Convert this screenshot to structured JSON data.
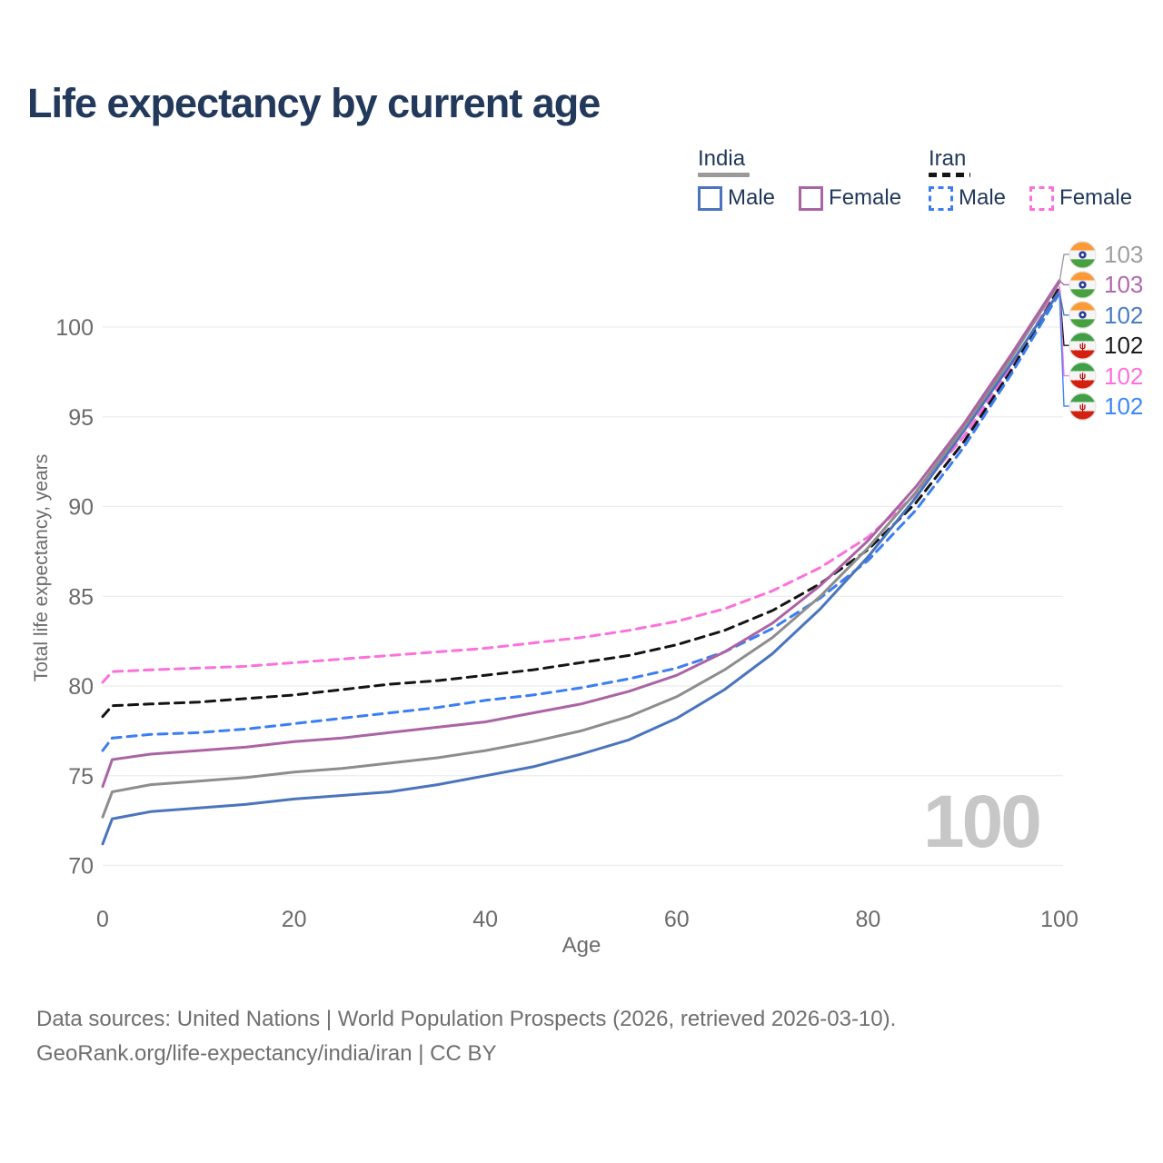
{
  "title": "Life expectancy by current age",
  "watermark": "100",
  "legend": {
    "groups": [
      {
        "label": "India",
        "line_color": "#9a9a9a",
        "line_style": "solid",
        "items": [
          {
            "label": "Male",
            "color": "#4a74bc",
            "dash": false
          },
          {
            "label": "Female",
            "color": "#ab64a3",
            "dash": false
          }
        ]
      },
      {
        "label": "Iran",
        "line_color": "#141414",
        "line_style": "dashed",
        "items": [
          {
            "label": "Male",
            "color": "#3b7ef2",
            "dash": true
          },
          {
            "label": "Female",
            "color": "#fb71dc",
            "dash": true
          }
        ]
      }
    ]
  },
  "axes": {
    "x": {
      "title": "Age",
      "ticks": [
        0,
        20,
        40,
        60,
        80,
        100
      ],
      "min": 0,
      "max": 100
    },
    "y": {
      "title": "Total life expectancy, years",
      "ticks": [
        70,
        75,
        80,
        85,
        90,
        95,
        100
      ],
      "min": 70,
      "max": 100
    }
  },
  "end_labels": [
    {
      "flag": "india",
      "value": "103",
      "color": "#9e9e9e",
      "series": 2
    },
    {
      "flag": "india",
      "value": "103",
      "color": "#b168ac",
      "series": 1
    },
    {
      "flag": "india",
      "value": "102",
      "color": "#4a7bc4",
      "series": 0
    },
    {
      "flag": "iran",
      "value": "102",
      "color": "#1c1c1c",
      "series": 5
    },
    {
      "flag": "iran",
      "value": "102",
      "color": "#ff70dd",
      "series": 4
    },
    {
      "flag": "iran",
      "value": "102",
      "color": "#3d87f7",
      "series": 3
    }
  ],
  "chart_data": {
    "type": "line",
    "title": "Life expectancy by current age",
    "xlabel": "Age",
    "ylabel": "Total life expectancy, years",
    "xlim": [
      0,
      100
    ],
    "ylim": [
      70,
      103
    ],
    "grid": "horizontal",
    "legend_position": "top-right",
    "x": [
      0,
      1,
      5,
      10,
      15,
      20,
      25,
      30,
      35,
      40,
      45,
      50,
      55,
      60,
      65,
      70,
      75,
      80,
      85,
      90,
      95,
      100
    ],
    "series": [
      {
        "country": "India",
        "group": "Male",
        "color": "#4a74bc",
        "dash": false,
        "end_label": 102,
        "values": [
          71.2,
          72.6,
          73.0,
          73.2,
          73.4,
          73.7,
          73.9,
          74.1,
          74.5,
          75.0,
          75.5,
          76.2,
          77.0,
          78.2,
          79.8,
          81.8,
          84.3,
          87.2,
          90.5,
          94.2,
          98.0,
          102.0
        ]
      },
      {
        "country": "India",
        "group": "Female",
        "color": "#ab64a3",
        "dash": false,
        "end_label": 103,
        "values": [
          74.4,
          75.9,
          76.2,
          76.4,
          76.6,
          76.9,
          77.1,
          77.4,
          77.7,
          78.0,
          78.5,
          79.0,
          79.7,
          80.6,
          81.9,
          83.5,
          85.6,
          88.1,
          91.1,
          94.6,
          98.5,
          102.6
        ]
      },
      {
        "country": "India",
        "group": "Total",
        "color": "#8d8d8d",
        "dash": false,
        "end_label": 103,
        "values": [
          72.7,
          74.1,
          74.5,
          74.7,
          74.9,
          75.2,
          75.4,
          75.7,
          76.0,
          76.4,
          76.9,
          77.5,
          78.3,
          79.4,
          80.9,
          82.7,
          85.0,
          87.7,
          90.8,
          94.4,
          98.3,
          102.5
        ]
      },
      {
        "country": "Iran",
        "group": "Male",
        "color": "#3b7ef2",
        "dash": true,
        "end_label": 102,
        "values": [
          76.4,
          77.1,
          77.3,
          77.4,
          77.6,
          77.9,
          78.2,
          78.5,
          78.8,
          79.2,
          79.5,
          79.9,
          80.4,
          81.0,
          81.9,
          83.2,
          84.9,
          87.0,
          89.8,
          93.3,
          97.4,
          101.9
        ]
      },
      {
        "country": "Iran",
        "group": "Female",
        "color": "#fb71dc",
        "dash": true,
        "end_label": 102,
        "values": [
          80.2,
          80.8,
          80.9,
          81.0,
          81.1,
          81.3,
          81.5,
          81.7,
          81.9,
          82.1,
          82.4,
          82.7,
          83.1,
          83.6,
          84.3,
          85.3,
          86.6,
          88.3,
          90.7,
          93.9,
          97.8,
          102.3
        ]
      },
      {
        "country": "Iran",
        "group": "Total",
        "color": "#141414",
        "dash": true,
        "end_label": 102,
        "values": [
          78.3,
          78.9,
          79.0,
          79.1,
          79.3,
          79.5,
          79.8,
          80.1,
          80.3,
          80.6,
          80.9,
          81.3,
          81.7,
          82.3,
          83.1,
          84.2,
          85.7,
          87.6,
          90.2,
          93.6,
          97.6,
          102.2
        ]
      }
    ]
  },
  "footer": {
    "line1": "Data sources: United Nations | World Population Prospects (2026, retrieved 2026-03-10).",
    "line2": "GeoRank.org/life-expectancy/india/iran | CC BY"
  }
}
